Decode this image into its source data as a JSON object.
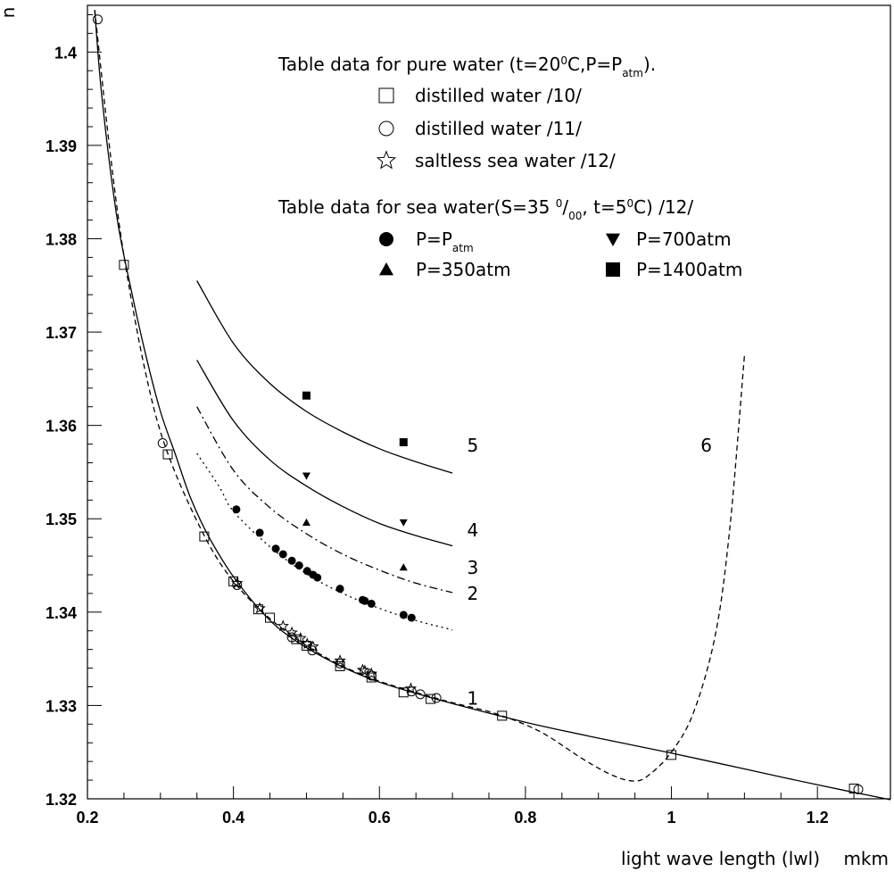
{
  "chart_data": {
    "type": "line",
    "xlabel": "light wave length (lwl)",
    "xunit": "mkm",
    "ylabel": "n",
    "xlim": [
      0.2,
      1.3
    ],
    "ylim": [
      1.32,
      1.405
    ],
    "xticks": [
      "0.2",
      "0.4",
      "0.6",
      "0.8",
      "1",
      "1.2"
    ],
    "yticks": [
      "1.32",
      "1.33",
      "1.34",
      "1.35",
      "1.36",
      "1.37",
      "1.38",
      "1.39",
      "1.4"
    ],
    "legend": {
      "header1": "Table data for pure water (t=20",
      "header1_sup": "0",
      "header1_mid": "C,P=P",
      "header1_sub": "atm",
      "header1_end": ").",
      "items1": [
        {
          "symbol": "open-square",
          "label": "distilled water /10/"
        },
        {
          "symbol": "open-circle",
          "label": "distilled water /11/"
        },
        {
          "symbol": "open-star",
          "label": "saltless sea water /12/"
        }
      ],
      "header2_a": "Table data for sea water(S=35",
      "header2_sup": "0",
      "header2_b": "/",
      "header2_sub": "00",
      "header2_c": ", t=5",
      "header2_sup2": "0",
      "header2_d": "C) /12/",
      "items2": [
        {
          "symbol": "filled-circle",
          "label": "P=P",
          "sub": "atm"
        },
        {
          "symbol": "filled-triangle-down",
          "label": "P=700atm"
        },
        {
          "symbol": "filled-triangle-up",
          "label": "P=350atm"
        },
        {
          "symbol": "filled-square",
          "label": "P=1400atm"
        }
      ]
    },
    "curve_labels": [
      "1",
      "2",
      "3",
      "4",
      "5",
      "6"
    ],
    "series": [
      {
        "style": "solid",
        "points": [
          [
            0.21,
            1.4045
          ],
          [
            0.22,
            1.395
          ],
          [
            0.24,
            1.3825
          ],
          [
            0.26,
            1.3745
          ],
          [
            0.28,
            1.3675
          ],
          [
            0.3,
            1.3615
          ],
          [
            0.32,
            1.357
          ],
          [
            0.34,
            1.3525
          ],
          [
            0.36,
            1.349
          ],
          [
            0.38,
            1.3462
          ],
          [
            0.4,
            1.3438
          ],
          [
            0.43,
            1.3408
          ],
          [
            0.46,
            1.3384
          ],
          [
            0.5,
            1.3362
          ],
          [
            0.55,
            1.3341
          ],
          [
            0.6,
            1.3325
          ],
          [
            0.65,
            1.3313
          ],
          [
            0.7,
            1.3302
          ],
          [
            0.8,
            1.3282
          ],
          [
            0.9,
            1.3265
          ],
          [
            1.0,
            1.3249
          ],
          [
            1.1,
            1.3232
          ],
          [
            1.2,
            1.3215
          ],
          [
            1.3,
            1.3199
          ]
        ]
      },
      {
        "style": "dotted",
        "points": [
          [
            0.35,
            1.357
          ],
          [
            0.38,
            1.3535
          ],
          [
            0.4,
            1.3508
          ],
          [
            0.45,
            1.347
          ],
          [
            0.5,
            1.3441
          ],
          [
            0.55,
            1.342
          ],
          [
            0.6,
            1.3404
          ],
          [
            0.65,
            1.3391
          ],
          [
            0.7,
            1.3381
          ]
        ]
      },
      {
        "style": "dashdot",
        "points": [
          [
            0.35,
            1.362
          ],
          [
            0.4,
            1.3552
          ],
          [
            0.45,
            1.3512
          ],
          [
            0.5,
            1.3484
          ],
          [
            0.55,
            1.3462
          ],
          [
            0.6,
            1.3445
          ],
          [
            0.65,
            1.3431
          ],
          [
            0.7,
            1.3421
          ]
        ]
      },
      {
        "style": "solid",
        "points": [
          [
            0.35,
            1.367
          ],
          [
            0.4,
            1.3605
          ],
          [
            0.45,
            1.3563
          ],
          [
            0.5,
            1.3535
          ],
          [
            0.55,
            1.3513
          ],
          [
            0.6,
            1.3495
          ],
          [
            0.65,
            1.3482
          ],
          [
            0.7,
            1.3471
          ]
        ]
      },
      {
        "style": "solid",
        "points": [
          [
            0.35,
            1.3755
          ],
          [
            0.4,
            1.3688
          ],
          [
            0.45,
            1.3645
          ],
          [
            0.5,
            1.3615
          ],
          [
            0.55,
            1.3593
          ],
          [
            0.6,
            1.3575
          ],
          [
            0.65,
            1.3561
          ],
          [
            0.7,
            1.3549
          ]
        ]
      },
      {
        "style": "dashed",
        "points": [
          [
            0.21,
            1.4045
          ],
          [
            0.23,
            1.39
          ],
          [
            0.25,
            1.3782
          ],
          [
            0.28,
            1.3655
          ],
          [
            0.31,
            1.357
          ],
          [
            0.36,
            1.3482
          ],
          [
            0.4,
            1.3433
          ],
          [
            0.45,
            1.3393
          ],
          [
            0.5,
            1.3364
          ],
          [
            0.55,
            1.3342
          ],
          [
            0.6,
            1.3326
          ],
          [
            0.65,
            1.3314
          ],
          [
            0.7,
            1.3303
          ],
          [
            0.76,
            1.3291
          ],
          [
            0.82,
            1.3272
          ],
          [
            0.88,
            1.3242
          ],
          [
            0.92,
            1.3225
          ],
          [
            0.95,
            1.3219
          ],
          [
            0.97,
            1.3226
          ],
          [
            1.0,
            1.325
          ],
          [
            1.03,
            1.3292
          ],
          [
            1.06,
            1.3375
          ],
          [
            1.08,
            1.349
          ],
          [
            1.1,
            1.3675
          ]
        ]
      }
    ],
    "markers": [
      {
        "symbol": "open-square",
        "points": [
          [
            0.25,
            1.3772
          ],
          [
            0.31,
            1.3569
          ],
          [
            0.36,
            1.3481
          ],
          [
            0.4,
            1.3433
          ],
          [
            0.434,
            1.3403
          ],
          [
            0.45,
            1.3394
          ],
          [
            0.486,
            1.3371
          ],
          [
            0.5,
            1.3364
          ],
          [
            0.546,
            1.3342
          ],
          [
            0.589,
            1.333
          ],
          [
            0.633,
            1.3314
          ],
          [
            0.67,
            1.3307
          ],
          [
            0.768,
            1.3289
          ],
          [
            1.0,
            1.3247
          ],
          [
            1.25,
            1.3211
          ]
        ]
      },
      {
        "symbol": "open-circle",
        "points": [
          [
            0.214,
            1.4035
          ],
          [
            0.303,
            1.3581
          ],
          [
            0.405,
            1.3429
          ],
          [
            0.48,
            1.3373
          ],
          [
            0.508,
            1.3359
          ],
          [
            0.546,
            1.3345
          ],
          [
            0.589,
            1.3332
          ],
          [
            0.644,
            1.3315
          ],
          [
            0.656,
            1.3312
          ],
          [
            0.678,
            1.3308
          ],
          [
            1.256,
            1.321
          ]
        ]
      },
      {
        "symbol": "open-star",
        "points": [
          [
            0.405,
            1.3431
          ],
          [
            0.436,
            1.3404
          ],
          [
            0.468,
            1.3385
          ],
          [
            0.48,
            1.3378
          ],
          [
            0.492,
            1.3372
          ],
          [
            0.501,
            1.3366
          ],
          [
            0.509,
            1.3363
          ],
          [
            0.546,
            1.3348
          ],
          [
            0.577,
            1.3338
          ],
          [
            0.58,
            1.3337
          ],
          [
            0.589,
            1.3334
          ],
          [
            0.643,
            1.3318
          ]
        ]
      },
      {
        "symbol": "filled-circle",
        "points": [
          [
            0.404,
            1.351
          ],
          [
            0.436,
            1.3485
          ],
          [
            0.458,
            1.3468
          ],
          [
            0.468,
            1.3462
          ],
          [
            0.48,
            1.3455
          ],
          [
            0.49,
            1.345
          ],
          [
            0.501,
            1.3444
          ],
          [
            0.509,
            1.344
          ],
          [
            0.515,
            1.3437
          ],
          [
            0.546,
            1.3425
          ],
          [
            0.577,
            1.3413
          ],
          [
            0.58,
            1.3412
          ],
          [
            0.589,
            1.3409
          ],
          [
            0.633,
            1.3397
          ],
          [
            0.644,
            1.3394
          ]
        ]
      },
      {
        "symbol": "filled-triangle-up",
        "points": [
          [
            0.5,
            1.3496
          ],
          [
            0.633,
            1.3448
          ]
        ]
      },
      {
        "symbol": "filled-triangle-down",
        "points": [
          [
            0.5,
            1.3546
          ],
          [
            0.633,
            1.3496
          ]
        ]
      },
      {
        "symbol": "filled-square",
        "points": [
          [
            0.5,
            1.3632
          ],
          [
            0.633,
            1.3582
          ]
        ]
      }
    ],
    "label_positions_data": [
      [
        0.72,
        1.3301
      ],
      [
        0.72,
        1.3413
      ],
      [
        0.72,
        1.3441
      ],
      [
        0.72,
        1.3481
      ],
      [
        0.72,
        1.3572
      ],
      [
        1.04,
        1.3572
      ]
    ]
  }
}
